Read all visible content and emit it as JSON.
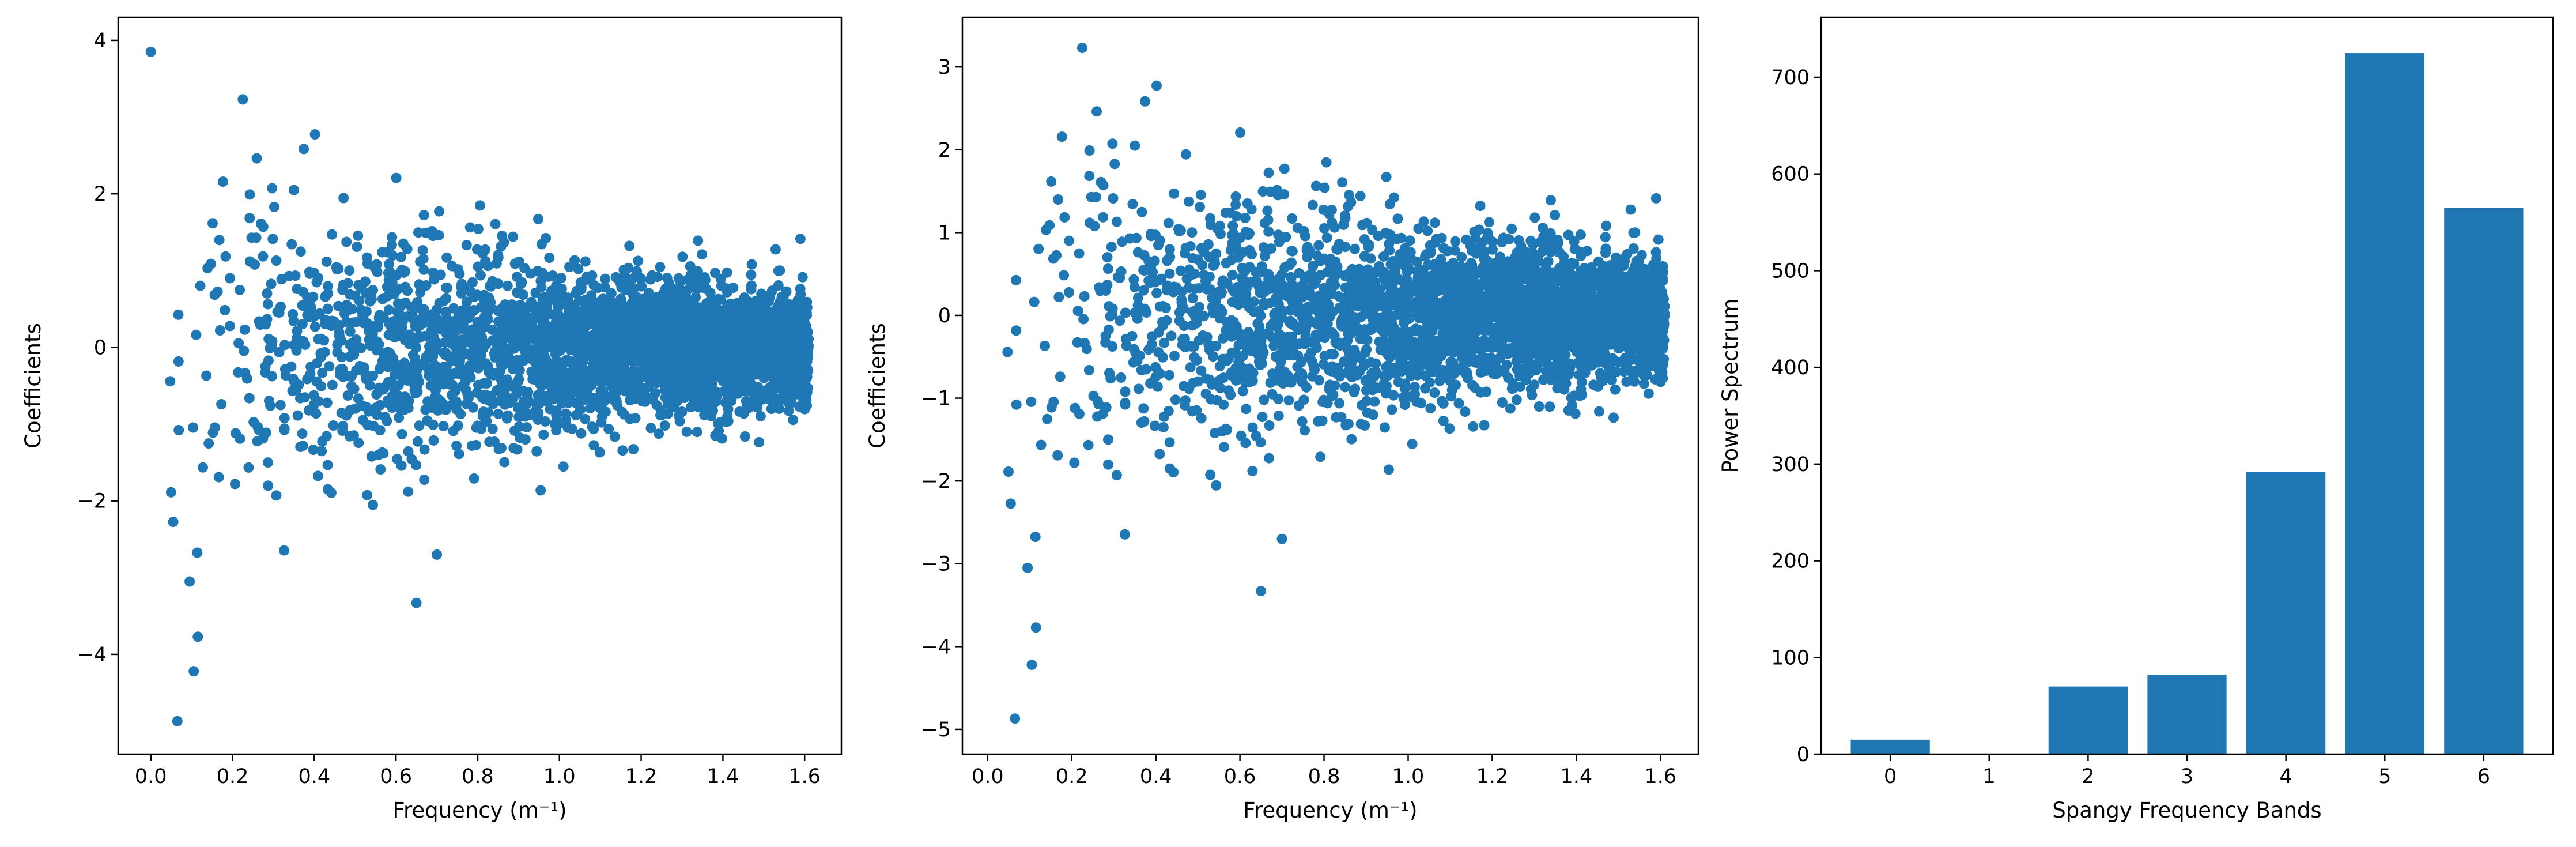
{
  "colors": {
    "marker": "#1f77b4",
    "bar": "#1f77b4",
    "axes": "#000000"
  },
  "chart_data": [
    {
      "type": "scatter",
      "xlabel": "Frequency (m⁻¹)",
      "ylabel": "Coefficients",
      "xlim": [
        -0.08,
        1.69
      ],
      "ylim": [
        -5.3,
        4.3
      ],
      "xticks": [
        0.0,
        0.2,
        0.4,
        0.6,
        0.8,
        1.0,
        1.2,
        1.4,
        1.6
      ],
      "xtick_labels": [
        "0.0",
        "0.2",
        "0.4",
        "0.6",
        "0.8",
        "1.0",
        "1.2",
        "1.4",
        "1.6"
      ],
      "yticks": [
        -4,
        -2,
        0,
        2,
        4
      ],
      "ytick_labels": [
        "−4",
        "−2",
        "0",
        "2",
        "4"
      ],
      "grid": false,
      "notable_points": [
        {
          "x": 0.0,
          "y": 3.85
        },
        {
          "x": 0.065,
          "y": -4.87
        },
        {
          "x": 0.095,
          "y": -3.05
        },
        {
          "x": 0.105,
          "y": -4.22
        },
        {
          "x": 0.115,
          "y": -3.77
        },
        {
          "x": 0.225,
          "y": 3.23
        },
        {
          "x": 0.65,
          "y": -3.33
        },
        {
          "x": 0.7,
          "y": -2.7
        }
      ],
      "sample_seed": 7,
      "sample_count": 3000
    },
    {
      "type": "scatter",
      "xlabel": "Frequency (m⁻¹)",
      "ylabel": "Coefficients",
      "xlim": [
        -0.06,
        1.69
      ],
      "ylim": [
        -5.3,
        3.6
      ],
      "xticks": [
        0.0,
        0.2,
        0.4,
        0.6,
        0.8,
        1.0,
        1.2,
        1.4,
        1.6
      ],
      "xtick_labels": [
        "0.0",
        "0.2",
        "0.4",
        "0.6",
        "0.8",
        "1.0",
        "1.2",
        "1.4",
        "1.6"
      ],
      "yticks": [
        -5,
        -4,
        -3,
        -2,
        -1,
        0,
        1,
        2,
        3
      ],
      "ytick_labels": [
        "−5",
        "−4",
        "−3",
        "−2",
        "−1",
        "0",
        "1",
        "2",
        "3"
      ],
      "grid": false,
      "notable_points": [
        {
          "x": 0.065,
          "y": -4.87
        },
        {
          "x": 0.095,
          "y": -3.05
        },
        {
          "x": 0.105,
          "y": -4.22
        },
        {
          "x": 0.115,
          "y": -3.77
        },
        {
          "x": 0.225,
          "y": 3.23
        },
        {
          "x": 0.65,
          "y": -3.33
        },
        {
          "x": 0.7,
          "y": -2.7
        }
      ],
      "sample_seed": 7,
      "sample_count": 3000
    },
    {
      "type": "bar",
      "xlabel": "Spangy Frequency Bands",
      "ylabel": "Power Spectrum",
      "categories": [
        "0",
        "1",
        "2",
        "3",
        "4",
        "5",
        "6"
      ],
      "values": [
        15,
        0,
        70,
        82,
        292,
        725,
        565
      ],
      "xlim": [
        -0.7,
        6.7
      ],
      "ylim": [
        0,
        762
      ],
      "yticks": [
        0,
        100,
        200,
        300,
        400,
        500,
        600,
        700
      ],
      "ytick_labels": [
        "0",
        "100",
        "200",
        "300",
        "400",
        "500",
        "600",
        "700"
      ],
      "grid": false
    }
  ]
}
